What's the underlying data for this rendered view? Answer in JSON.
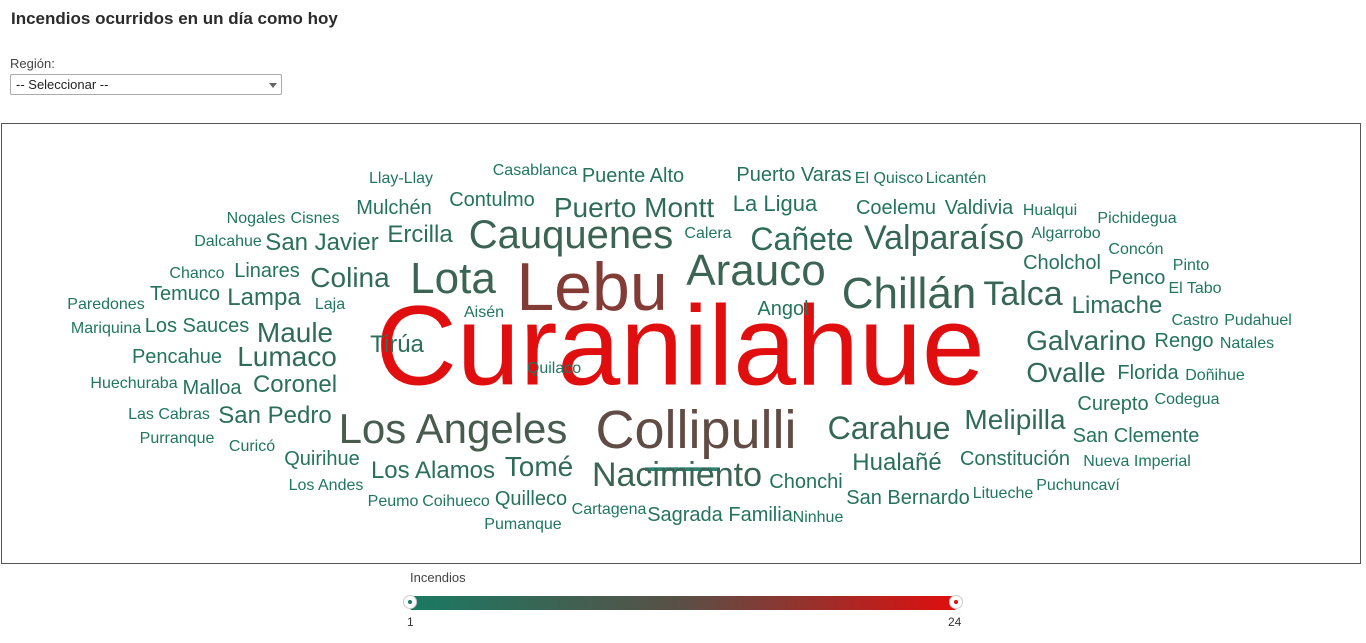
{
  "page": {
    "title": "Incendios ocurridos en un día como hoy"
  },
  "filter": {
    "label": "Región:",
    "selected": "-- Seleccionar --"
  },
  "colors": {
    "low": "#1a7a63",
    "mid": "#5a4f46",
    "high": "#e00e0e",
    "border": "#555555"
  },
  "cloud": {
    "words": [
      {
        "text": "Curanilahue",
        "value": 24
      },
      {
        "text": "Lebu",
        "value": 16
      },
      {
        "text": "Collipulli",
        "value": 13
      },
      {
        "text": "Los Angeles",
        "value": 9
      },
      {
        "text": "Lota",
        "value": 7
      },
      {
        "text": "Arauco",
        "value": 7
      },
      {
        "text": "Chillán",
        "value": 7
      },
      {
        "text": "Cauquenes",
        "value": 7
      },
      {
        "text": "Nacimiento",
        "value": 7
      },
      {
        "text": "Valparaíso",
        "value": 6
      },
      {
        "text": "Talca",
        "value": 6
      },
      {
        "text": "Carahue",
        "value": 6
      },
      {
        "text": "Puerto Montt",
        "value": 5
      },
      {
        "text": "Cañete",
        "value": 5
      },
      {
        "text": "Melipilla",
        "value": 5
      },
      {
        "text": "Colina",
        "value": 5
      },
      {
        "text": "Maule",
        "value": 5
      },
      {
        "text": "Lumaco",
        "value": 5
      },
      {
        "text": "Tomé",
        "value": 5
      },
      {
        "text": "Galvarino",
        "value": 5
      },
      {
        "text": "Ovalle",
        "value": 5
      },
      {
        "text": "Hualañé",
        "value": 4
      },
      {
        "text": "Limache",
        "value": 4
      },
      {
        "text": "San Pedro",
        "value": 4
      },
      {
        "text": "Los Alamos",
        "value": 4
      },
      {
        "text": "Ercilla",
        "value": 4
      },
      {
        "text": "San Javier",
        "value": 4
      },
      {
        "text": "Coronel",
        "value": 4
      },
      {
        "text": "Tirúa",
        "value": 4
      },
      {
        "text": "Lampa",
        "value": 4
      },
      {
        "text": "Sagrada Familia",
        "value": 3
      },
      {
        "text": "La Ligua",
        "value": 3
      },
      {
        "text": "Cholchol",
        "value": 3
      },
      {
        "text": "San Bernardo",
        "value": 3
      },
      {
        "text": "San Clemente",
        "value": 3
      },
      {
        "text": "Constitución",
        "value": 3
      },
      {
        "text": "Angol",
        "value": 3
      },
      {
        "text": "Valdivia",
        "value": 3
      },
      {
        "text": "Coelemu",
        "value": 3
      },
      {
        "text": "Puerto Varas",
        "value": 3
      },
      {
        "text": "Puente Alto",
        "value": 3
      },
      {
        "text": "Contulmo",
        "value": 3
      },
      {
        "text": "Mulchén",
        "value": 3
      },
      {
        "text": "Linares",
        "value": 3
      },
      {
        "text": "Temuco",
        "value": 3
      },
      {
        "text": "Los Sauces",
        "value": 3
      },
      {
        "text": "Pencahue",
        "value": 3
      },
      {
        "text": "Malloa",
        "value": 3
      },
      {
        "text": "Quirihue",
        "value": 3
      },
      {
        "text": "Quilleco",
        "value": 3
      },
      {
        "text": "Chonchi",
        "value": 3
      },
      {
        "text": "Florida",
        "value": 3
      },
      {
        "text": "Curepto",
        "value": 3
      },
      {
        "text": "Rengo",
        "value": 3
      },
      {
        "text": "Penco",
        "value": 3
      },
      {
        "text": "Nueva Imperial",
        "value": 2
      },
      {
        "text": "Puchuncaví",
        "value": 2
      },
      {
        "text": "Litueche",
        "value": 2
      },
      {
        "text": "Ninhue",
        "value": 2
      },
      {
        "text": "Cartagena",
        "value": 2
      },
      {
        "text": "Coihueco",
        "value": 2
      },
      {
        "text": "Peumo",
        "value": 2
      },
      {
        "text": "Pumanque",
        "value": 2
      },
      {
        "text": "Los Andes",
        "value": 2
      },
      {
        "text": "Curicó",
        "value": 2
      },
      {
        "text": "Purranque",
        "value": 2
      },
      {
        "text": "Las Cabras",
        "value": 2
      },
      {
        "text": "Huechuraba",
        "value": 2
      },
      {
        "text": "Mariquina",
        "value": 2
      },
      {
        "text": "Paredones",
        "value": 2
      },
      {
        "text": "Chanco",
        "value": 2
      },
      {
        "text": "Dalcahue",
        "value": 2
      },
      {
        "text": "Nogales",
        "value": 2
      },
      {
        "text": "Cisnes",
        "value": 2
      },
      {
        "text": "Llay-Llay",
        "value": 2
      },
      {
        "text": "Casablanca",
        "value": 2
      },
      {
        "text": "El Quisco",
        "value": 2
      },
      {
        "text": "Licantén",
        "value": 2
      },
      {
        "text": "Hualqui",
        "value": 2
      },
      {
        "text": "Pichidegua",
        "value": 2
      },
      {
        "text": "Algarrobo",
        "value": 2
      },
      {
        "text": "Concón",
        "value": 2
      },
      {
        "text": "Pinto",
        "value": 2
      },
      {
        "text": "El Tabo",
        "value": 2
      },
      {
        "text": "Castro",
        "value": 2
      },
      {
        "text": "Pudahuel",
        "value": 2
      },
      {
        "text": "Natales",
        "value": 2
      },
      {
        "text": "Doñihue",
        "value": 2
      },
      {
        "text": "Codegua",
        "value": 2
      },
      {
        "text": "Calera",
        "value": 2
      },
      {
        "text": "Laja",
        "value": 2
      },
      {
        "text": "Aisén",
        "value": 2
      },
      {
        "text": "Quilaco",
        "value": 2
      }
    ]
  },
  "legend": {
    "title": "Incendios",
    "min": "1",
    "max": "24",
    "min_value": 1,
    "max_value": 24
  }
}
